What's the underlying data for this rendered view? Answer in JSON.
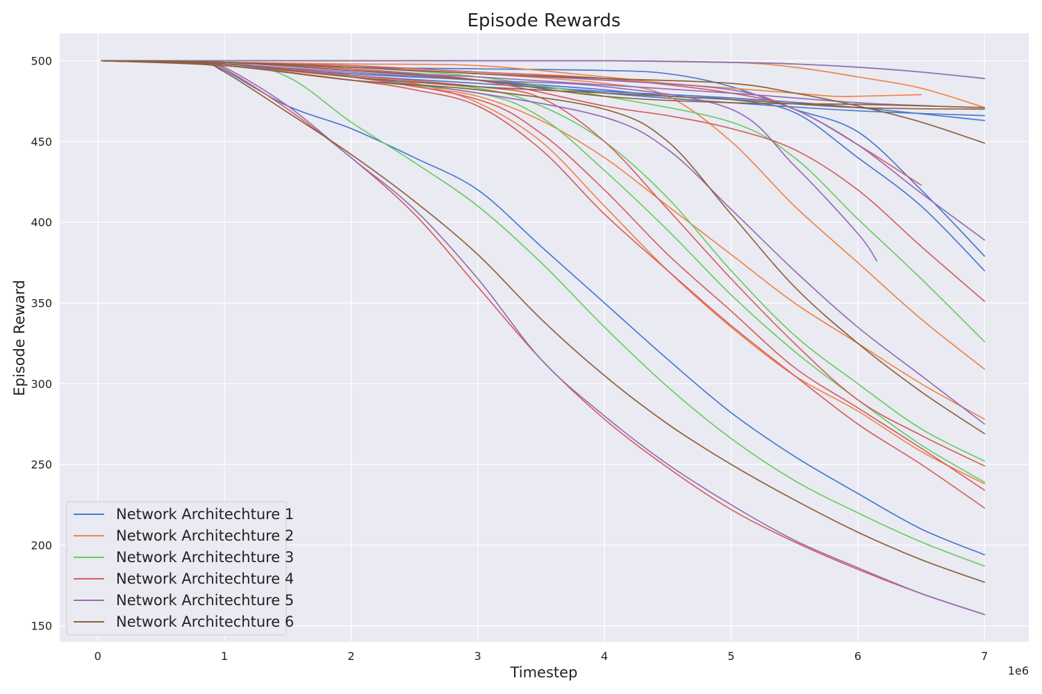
{
  "chart_data": {
    "type": "line",
    "title": "Episode Rewards",
    "xlabel": "Timestep",
    "ylabel": "Episode Reward",
    "x_scale_label": "1e6",
    "xlim": [
      -0.3,
      7.35
    ],
    "ylim": [
      140,
      517
    ],
    "xticks": [
      0,
      1,
      2,
      3,
      4,
      5,
      6,
      7
    ],
    "xtick_labels": [
      "0",
      "1",
      "2",
      "3",
      "4",
      "5",
      "6",
      "7"
    ],
    "yticks": [
      150,
      200,
      250,
      300,
      350,
      400,
      450,
      500
    ],
    "ytick_labels": [
      "150",
      "200",
      "250",
      "300",
      "350",
      "400",
      "450",
      "500"
    ],
    "grid": true,
    "legend_position": "lower-left",
    "series": [
      {
        "name": "Network Architechture 1",
        "color": "#4878d0",
        "runs": [
          {
            "x": [
              0.03,
              0.8,
              1.0,
              1.5,
              2.0,
              2.5,
              3.0,
              3.5,
              4.0,
              4.5,
              5.0,
              5.5,
              6.0,
              6.5,
              7.0
            ],
            "y": [
              500,
              499,
              494,
              472,
              458,
              440,
              420,
              385,
              350,
              315,
              282,
              255,
              232,
              210,
              194
            ]
          },
          {
            "x": [
              0.03,
              1.0,
              2.0,
              3.0,
              3.5,
              4.0,
              4.5,
              5.0,
              5.5,
              6.0,
              6.5,
              7.0
            ],
            "y": [
              500,
              498,
              492,
              488,
              485,
              482,
              478,
              476,
              468,
              440,
              410,
              370
            ]
          },
          {
            "x": [
              0.03,
              1.0,
              2.0,
              3.0,
              4.0,
              4.5,
              5.0,
              5.5,
              6.0,
              6.5,
              7.0
            ],
            "y": [
              500,
              499,
              496,
              495,
              494,
              492,
              484,
              470,
              456,
              420,
              379
            ]
          },
          {
            "x": [
              0.03,
              1.0,
              2.0,
              3.0,
              4.0,
              5.0,
              6.0,
              7.0
            ],
            "y": [
              500,
              498,
              492,
              488,
              480,
              474,
              469,
              466
            ]
          },
          {
            "x": [
              0.03,
              1.0,
              2.0,
              3.0,
              4.0,
              5.0,
              6.0,
              7.0
            ],
            "y": [
              500,
              498,
              491,
              486,
              481,
              477,
              471,
              463
            ]
          }
        ]
      },
      {
        "name": "Network Architechture 2",
        "color": "#ee854a",
        "runs": [
          {
            "x": [
              0.03,
              1.0,
              2.0,
              2.5,
              3.0,
              3.5,
              4.0,
              4.5,
              5.0,
              5.5,
              6.0,
              6.5,
              7.0
            ],
            "y": [
              500,
              498,
              490,
              484,
              478,
              463,
              440,
              410,
              380,
              350,
              325,
              300,
              278
            ]
          },
          {
            "x": [
              0.03,
              1.0,
              2.0,
              3.0,
              4.0,
              4.5,
              5.0,
              5.5,
              6.0,
              6.5,
              7.0
            ],
            "y": [
              500,
              499,
              496,
              492,
              486,
              478,
              450,
              410,
              375,
              340,
              309
            ]
          },
          {
            "x": [
              0.03,
              1.0,
              2.0,
              2.5,
              3.0,
              3.5,
              4.0,
              4.5,
              5.0,
              5.5,
              6.0,
              6.5,
              7.0
            ],
            "y": [
              500,
              497,
              490,
              486,
              474,
              450,
              410,
              370,
              335,
              305,
              283,
              258,
              238
            ]
          },
          {
            "x": [
              0.03,
              1.0,
              2.0,
              3.0,
              4.0,
              4.5,
              5.0,
              5.5,
              5.8,
              6.0,
              6.5
            ],
            "y": [
              500,
              499,
              498,
              497,
              490,
              486,
              483,
              480,
              478,
              478,
              479
            ]
          },
          {
            "x": [
              0.03,
              1.0,
              2.0,
              3.0,
              4.0,
              5.0,
              5.5,
              6.0,
              6.5,
              7.0
            ],
            "y": [
              500,
              500,
              500,
              500,
              500,
              499,
              496,
              490,
              483,
              471
            ]
          }
        ]
      },
      {
        "name": "Network Architechture 3",
        "color": "#6acc64",
        "runs": [
          {
            "x": [
              0.03,
              1.0,
              1.5,
              2.0,
              2.5,
              3.0,
              3.5,
              4.0,
              4.5,
              5.0,
              5.5,
              6.0,
              6.5,
              7.0
            ],
            "y": [
              500,
              499,
              490,
              462,
              437,
              410,
              375,
              335,
              298,
              266,
              240,
              220,
              202,
              187
            ]
          },
          {
            "x": [
              0.03,
              1.0,
              2.0,
              3.0,
              3.5,
              4.0,
              4.5,
              5.0,
              5.5,
              6.0,
              6.5,
              7.0
            ],
            "y": [
              500,
              497,
              488,
              480,
              465,
              432,
              395,
              355,
              320,
              290,
              262,
              239
            ]
          },
          {
            "x": [
              0.03,
              1.0,
              2.0,
              3.0,
              3.5,
              4.0,
              4.5,
              5.0,
              5.5,
              6.0,
              6.5,
              7.0
            ],
            "y": [
              500,
              498,
              490,
              483,
              472,
              450,
              415,
              370,
              330,
              300,
              272,
              252
            ]
          },
          {
            "x": [
              0.03,
              1.0,
              2.0,
              3.0,
              4.0,
              5.0,
              5.5,
              6.0,
              6.5,
              7.0
            ],
            "y": [
              500,
              499,
              496,
              490,
              478,
              462,
              440,
              402,
              365,
              326
            ]
          },
          {
            "x": [
              0.03,
              1.0,
              2.0,
              3.0,
              4.0,
              5.0,
              5.5,
              6.0,
              6.5,
              7.0
            ],
            "y": [
              500,
              500,
              500,
              500,
              500,
              499,
              498,
              496,
              493,
              489
            ]
          }
        ]
      },
      {
        "name": "Network Architechture 4",
        "color": "#d65f5f",
        "runs": [
          {
            "x": [
              0.03,
              0.8,
              1.0,
              1.5,
              2.0,
              2.5,
              3.0,
              3.5,
              4.0,
              4.5,
              5.0,
              5.5,
              6.0,
              6.5,
              7.0
            ],
            "y": [
              500,
              499,
              495,
              470,
              440,
              405,
              360,
              315,
              278,
              248,
              222,
              202,
              185,
              170,
              157
            ]
          },
          {
            "x": [
              0.03,
              1.0,
              2.0,
              2.5,
              3.0,
              3.5,
              4.0,
              4.5,
              5.0,
              5.5,
              6.0,
              6.5,
              7.0
            ],
            "y": [
              500,
              497,
              488,
              482,
              472,
              445,
              405,
              370,
              336,
              305,
              275,
              250,
              223
            ]
          },
          {
            "x": [
              0.03,
              1.0,
              2.0,
              3.0,
              3.5,
              4.0,
              4.5,
              5.0,
              5.5,
              6.0,
              6.5,
              7.0
            ],
            "y": [
              500,
              498,
              490,
              476,
              455,
              420,
              380,
              345,
              310,
              285,
              260,
              234
            ]
          },
          {
            "x": [
              0.03,
              1.0,
              2.0,
              3.0,
              3.5,
              4.0,
              4.5,
              5.0,
              5.5,
              6.0,
              6.5,
              7.0
            ],
            "y": [
              500,
              498,
              491,
              484,
              477,
              450,
              408,
              365,
              325,
              290,
              268,
              249
            ]
          },
          {
            "x": [
              0.03,
              1.0,
              2.0,
              3.0,
              4.0,
              4.5,
              5.0,
              5.5,
              6.0,
              6.5,
              7.0
            ],
            "y": [
              500,
              499,
              495,
              488,
              472,
              466,
              458,
              445,
              420,
              385,
              351
            ]
          },
          {
            "x": [
              0.03,
              1.0,
              2.0,
              3.0,
              4.0,
              5.0,
              5.5,
              6.0,
              6.5
            ],
            "y": [
              500,
              499,
              497,
              493,
              489,
              480,
              470,
              448,
              423
            ]
          }
        ]
      },
      {
        "name": "Network Architechture 5",
        "color": "#956cb4",
        "runs": [
          {
            "x": [
              0.03,
              0.8,
              1.0,
              1.5,
              2.0,
              2.5,
              3.0,
              3.5,
              4.0,
              4.5,
              5.0,
              5.5,
              6.0,
              6.5,
              7.0
            ],
            "y": [
              500,
              499,
              496,
              472,
              440,
              408,
              365,
              315,
              280,
              250,
              225,
              203,
              186,
              170,
              157
            ]
          },
          {
            "x": [
              0.03,
              1.0,
              2.0,
              3.0,
              4.0,
              4.5,
              5.0,
              5.5,
              6.0,
              6.5,
              7.0
            ],
            "y": [
              500,
              497,
              490,
              480,
              465,
              445,
              408,
              370,
              335,
              305,
              275
            ]
          },
          {
            "x": [
              0.03,
              1.0,
              2.0,
              3.0,
              4.0,
              5.0,
              5.5,
              6.0,
              6.15
            ],
            "y": [
              500,
              498,
              493,
              488,
              484,
              470,
              435,
              393,
              376
            ]
          },
          {
            "x": [
              0.03,
              1.0,
              2.0,
              3.0,
              4.0,
              5.0,
              5.5,
              6.0,
              6.5,
              7.0
            ],
            "y": [
              500,
              499,
              496,
              492,
              488,
              482,
              470,
              448,
              418,
              389
            ]
          },
          {
            "x": [
              0.03,
              1.0,
              2.0,
              3.0,
              4.0,
              5.0,
              6.0,
              6.6
            ],
            "y": [
              500,
              499,
              494,
              490,
              485,
              480,
              474,
              472
            ]
          },
          {
            "x": [
              0.03,
              1.0,
              2.0,
              3.0,
              4.0,
              5.0,
              5.5,
              6.0,
              6.5,
              7.0
            ],
            "y": [
              500,
              500,
              500,
              500,
              500,
              499,
              498,
              496,
              493,
              489
            ]
          }
        ]
      },
      {
        "name": "Network Architechture 6",
        "color": "#8c613c",
        "runs": [
          {
            "x": [
              0.03,
              0.8,
              1.0,
              1.5,
              2.0,
              2.5,
              3.0,
              3.5,
              4.0,
              4.5,
              5.0,
              5.5,
              6.0,
              6.5,
              7.0
            ],
            "y": [
              500,
              498,
              493,
              468,
              442,
              413,
              380,
              340,
              305,
              275,
              250,
              228,
              208,
              191,
              177
            ]
          },
          {
            "x": [
              0.03,
              1.0,
              2.0,
              3.0,
              4.0,
              4.5,
              5.0,
              5.5,
              6.0,
              6.5,
              7.0
            ],
            "y": [
              500,
              497,
              488,
              482,
              470,
              450,
              405,
              360,
              325,
              295,
              269
            ]
          },
          {
            "x": [
              0.03,
              1.0,
              2.0,
              3.0,
              4.0,
              5.0,
              5.5,
              6.0,
              6.5,
              7.0
            ],
            "y": [
              500,
              499,
              496,
              492,
              489,
              486,
              480,
              472,
              462,
              449
            ]
          },
          {
            "x": [
              0.03,
              1.0,
              2.0,
              3.0,
              4.0,
              5.0,
              6.0,
              7.0
            ],
            "y": [
              500,
              498,
              490,
              484,
              480,
              476,
              471,
              470
            ]
          },
          {
            "x": [
              0.03,
              1.0,
              2.0,
              3.0,
              4.0,
              5.0,
              6.0,
              7.0
            ],
            "y": [
              500,
              499,
              494,
              488,
              478,
              474,
              473,
              471
            ]
          }
        ]
      }
    ]
  }
}
